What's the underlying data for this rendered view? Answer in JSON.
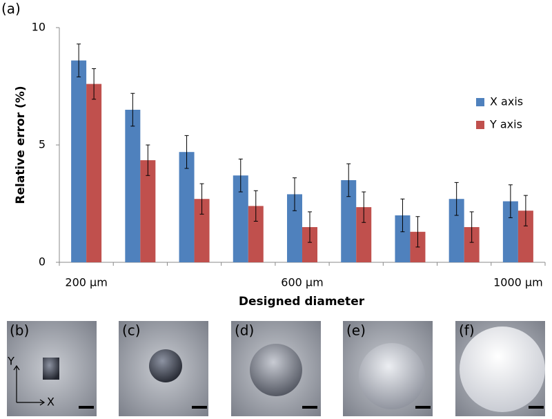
{
  "chart_data": {
    "type": "bar",
    "panel_label": "(a)",
    "x_label": "Designed diameter",
    "y_label": "Relative error (%)",
    "categories": [
      "200 µm",
      null,
      null,
      null,
      "600 µm",
      null,
      null,
      null,
      "1000 µm"
    ],
    "series": [
      {
        "name": "X axis",
        "color": "#4f81bd",
        "values": [
          8.6,
          6.5,
          4.7,
          3.7,
          2.9,
          3.5,
          2.0,
          2.7,
          2.6
        ],
        "errors": [
          0.7,
          0.7,
          0.7,
          0.7,
          0.7,
          0.7,
          0.7,
          0.7,
          0.7
        ]
      },
      {
        "name": "Y axis",
        "color": "#c0504d",
        "values": [
          7.6,
          4.35,
          2.7,
          2.4,
          1.5,
          2.35,
          1.3,
          1.5,
          2.2
        ],
        "errors": [
          0.65,
          0.65,
          0.65,
          0.65,
          0.65,
          0.65,
          0.65,
          0.65,
          0.65
        ]
      }
    ],
    "ylim": [
      0,
      10
    ],
    "yticks": [
      0,
      5,
      10
    ],
    "grid": false,
    "legend": "right"
  },
  "images": {
    "labels": [
      "(b)",
      "(c)",
      "(d)",
      "(e)",
      "(f)"
    ],
    "axis_x": "X",
    "axis_y": "Y"
  }
}
